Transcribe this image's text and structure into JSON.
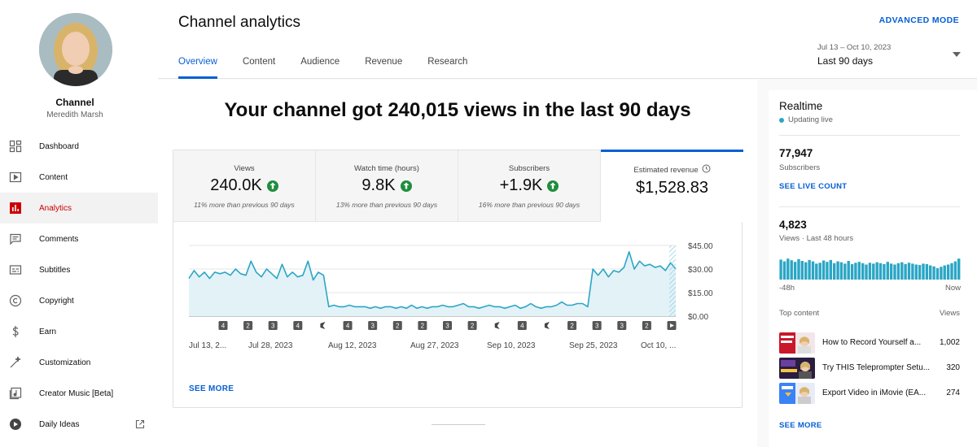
{
  "sidebar": {
    "channel_name": "Channel",
    "channel_handle": "Meredith Marsh",
    "items": [
      {
        "label": "Dashboard",
        "icon": "dashboard-icon"
      },
      {
        "label": "Content",
        "icon": "content-icon"
      },
      {
        "label": "Analytics",
        "icon": "analytics-icon",
        "active": true
      },
      {
        "label": "Comments",
        "icon": "comments-icon"
      },
      {
        "label": "Subtitles",
        "icon": "subtitles-icon"
      },
      {
        "label": "Copyright",
        "icon": "copyright-icon"
      },
      {
        "label": "Earn",
        "icon": "earn-icon"
      },
      {
        "label": "Customization",
        "icon": "customization-icon"
      },
      {
        "label": "Creator Music [Beta]",
        "icon": "creator-music-icon"
      },
      {
        "label": "Daily Ideas",
        "icon": "daily-ideas-icon"
      }
    ]
  },
  "header": {
    "title": "Channel analytics",
    "advanced_mode": "ADVANCED MODE",
    "tabs": [
      "Overview",
      "Content",
      "Audience",
      "Revenue",
      "Research"
    ],
    "date_range_sub": "Jul 13 – Oct 10, 2023",
    "date_range_main": "Last 90 days"
  },
  "main": {
    "headline": "Your channel got 240,015 views in the last 90 days",
    "metrics": [
      {
        "label": "Views",
        "value": "240.0K",
        "sub": "11% more than previous 90 days",
        "trend": "up"
      },
      {
        "label": "Watch time (hours)",
        "value": "9.8K",
        "sub": "13% more than previous 90 days",
        "trend": "up"
      },
      {
        "label": "Subscribers",
        "value": "+1.9K",
        "sub": "16% more than previous 90 days",
        "trend": "up"
      },
      {
        "label": "Estimated revenue",
        "value": "$1,528.83",
        "sub": "",
        "selected": true
      }
    ],
    "see_more": "SEE MORE"
  },
  "chart_data": {
    "type": "area",
    "title": "",
    "ylabel": "",
    "y_ticks": [
      "$45.00",
      "$30.00",
      "$15.00",
      "$0.00"
    ],
    "ylim": [
      0,
      45
    ],
    "x_labels": [
      "Jul 13, 2...",
      "Jul 28, 2023",
      "Aug 12, 2023",
      "Aug 27, 2023",
      "Sep 10, 2023",
      "Sep 25, 2023",
      "Oct 10, ..."
    ],
    "series": [
      {
        "values": [
          24,
          29,
          25,
          28,
          24,
          28,
          27,
          28,
          26,
          30,
          27,
          26,
          35,
          28,
          25,
          30,
          27,
          24,
          33,
          25,
          28,
          25,
          26,
          35,
          23,
          28,
          26,
          6,
          7,
          6,
          6,
          7,
          6,
          6,
          6,
          5,
          6,
          5,
          6,
          6,
          5,
          6,
          5,
          7,
          5,
          6,
          5,
          6,
          6,
          7,
          6,
          6,
          7,
          8,
          6,
          6,
          5,
          6,
          7,
          6,
          6,
          5,
          6,
          7,
          5,
          6,
          8,
          6,
          5,
          6,
          6,
          7,
          9,
          7,
          7,
          8,
          8,
          6,
          30,
          26,
          30,
          25,
          29,
          28,
          31,
          41,
          30,
          35,
          32,
          33,
          31,
          32,
          29,
          34,
          30
        ]
      }
    ],
    "markers": [
      "4",
      "2",
      "3",
      "4",
      "short",
      "4",
      "3",
      "2",
      "2",
      "3",
      "2",
      "short",
      "4",
      "short",
      "2",
      "3",
      "3",
      "2",
      "video"
    ],
    "grid": true
  },
  "realtime": {
    "title": "Realtime",
    "live": "Updating live",
    "subscribers_value": "77,947",
    "subscribers_label": "Subscribers",
    "see_live_count": "SEE LIVE COUNT",
    "views_value": "4,823",
    "views_label": "Views · Last 48 hours",
    "axis_left": "-48h",
    "axis_right": "Now",
    "top_content_label": "Top content",
    "views_header": "Views",
    "see_more": "SEE MORE",
    "bars": [
      0.88,
      0.8,
      0.92,
      0.85,
      0.78,
      0.9,
      0.82,
      0.76,
      0.86,
      0.8,
      0.7,
      0.74,
      0.84,
      0.78,
      0.86,
      0.72,
      0.8,
      0.76,
      0.7,
      0.82,
      0.68,
      0.74,
      0.78,
      0.72,
      0.66,
      0.74,
      0.7,
      0.76,
      0.72,
      0.68,
      0.78,
      0.7,
      0.66,
      0.72,
      0.76,
      0.68,
      0.74,
      0.7,
      0.66,
      0.64,
      0.7,
      0.68,
      0.62,
      0.58,
      0.5,
      0.56,
      0.62,
      0.66,
      0.72,
      0.8,
      0.92
    ],
    "top_content": [
      {
        "title": "How to Record Yourself a...",
        "views": "1,002",
        "thumb_color": "#c9182a"
      },
      {
        "title": "Try THIS Teleprompter Setu...",
        "views": "320",
        "thumb_color": "#6b3fa0"
      },
      {
        "title": "Export Video in iMovie (EA...",
        "views": "274",
        "thumb_color": "#3b82f6"
      }
    ]
  }
}
